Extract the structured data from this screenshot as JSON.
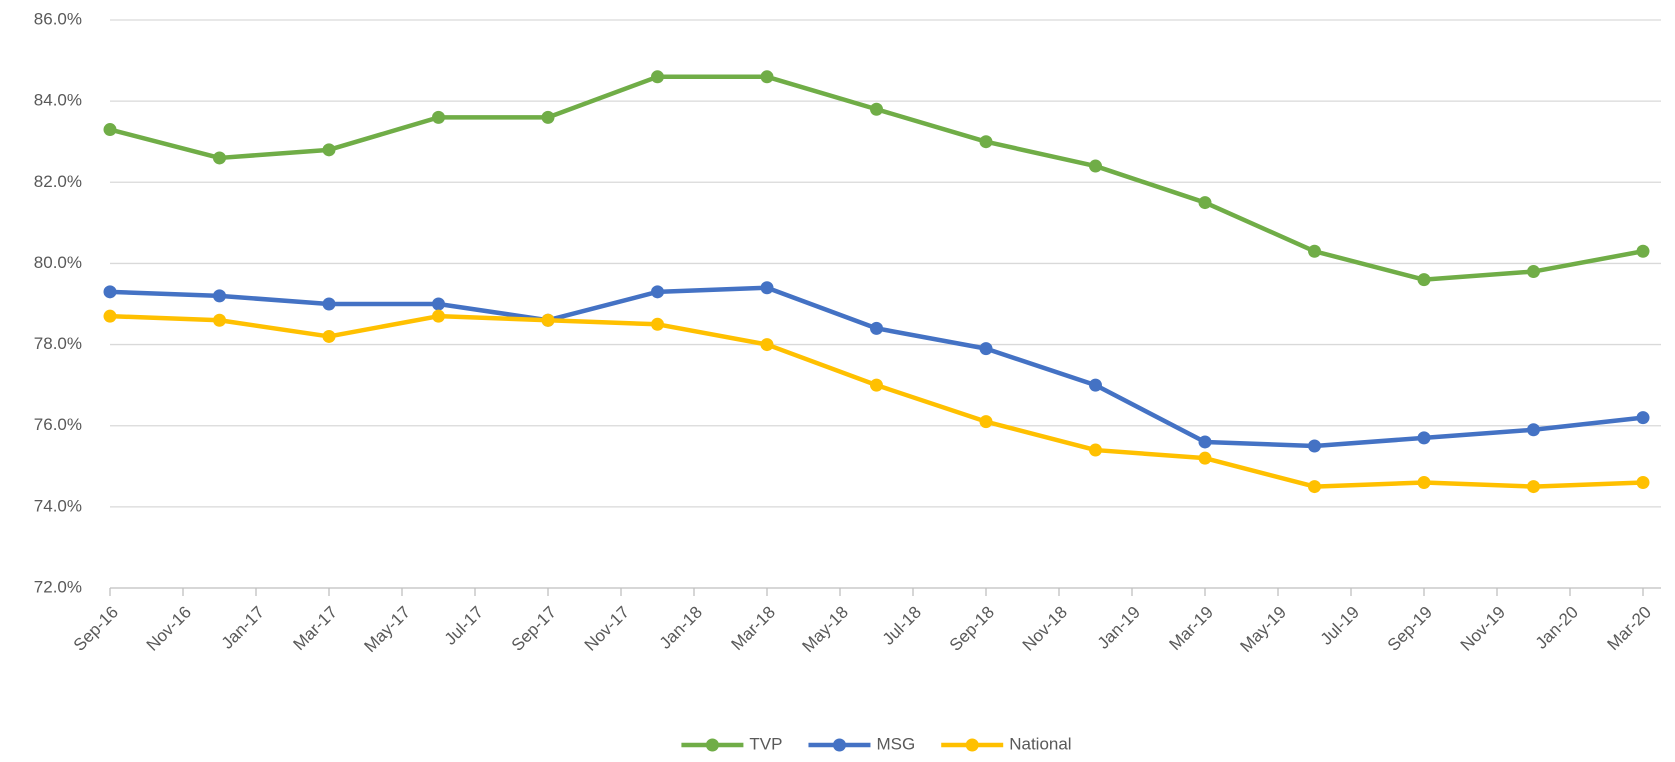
{
  "chart_data": {
    "type": "line",
    "x": [
      "Sep-16",
      "Dec-16",
      "Mar-17",
      "Jun-17",
      "Sep-17",
      "Dec-17",
      "Mar-18",
      "Jun-18",
      "Sep-18",
      "Dec-18",
      "Mar-19",
      "Jun-19",
      "Sep-19",
      "Dec-19",
      "Mar-20"
    ],
    "series": [
      {
        "name": "TVP",
        "color": "#70ad47",
        "values": [
          83.3,
          82.6,
          82.8,
          83.6,
          83.6,
          84.6,
          84.6,
          83.8,
          83.0,
          82.4,
          81.5,
          80.3,
          79.6,
          79.8,
          80.3
        ]
      },
      {
        "name": "MSG",
        "color": "#4472c4",
        "values": [
          79.3,
          79.2,
          79.0,
          79.0,
          78.6,
          79.3,
          79.4,
          78.4,
          77.9,
          77.0,
          75.6,
          75.5,
          75.7,
          75.9,
          76.2
        ]
      },
      {
        "name": "National",
        "color": "#ffc000",
        "values": [
          78.7,
          78.6,
          78.2,
          78.7,
          78.6,
          78.5,
          78.0,
          77.0,
          76.1,
          75.4,
          75.2,
          74.5,
          74.6,
          74.5,
          74.6
        ]
      }
    ],
    "xticks": [
      "Sep-16",
      "Nov-16",
      "Jan-17",
      "Mar-17",
      "May-17",
      "Jul-17",
      "Sep-17",
      "Nov-17",
      "Jan-18",
      "Mar-18",
      "May-18",
      "Jul-18",
      "Sep-18",
      "Nov-18",
      "Jan-19",
      "Mar-19",
      "May-19",
      "Jul-19",
      "Sep-19",
      "Nov-19",
      "Jan-20",
      "Mar-20"
    ],
    "ylim": [
      72,
      86
    ],
    "yticks": [
      {
        "value": 72,
        "label": "72.0%"
      },
      {
        "value": 74,
        "label": "74.0%"
      },
      {
        "value": 76,
        "label": "76.0%"
      },
      {
        "value": 78,
        "label": "78.0%"
      },
      {
        "value": 80,
        "label": "80.0%"
      },
      {
        "value": 82,
        "label": "82.0%"
      },
      {
        "value": 84,
        "label": "84.0%"
      },
      {
        "value": 86,
        "label": "86.0%"
      }
    ],
    "grid": true,
    "legend": "bottom"
  }
}
